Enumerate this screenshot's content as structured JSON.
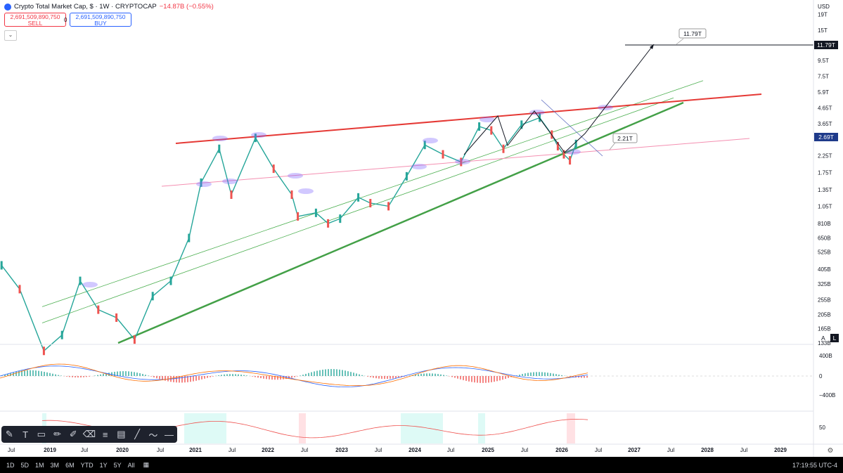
{
  "header": {
    "title": "Crypto Total Market Cap, $ · 1W · CRYPTOCAP",
    "change": "−14.87B (−0.55%)",
    "sell_price": "2,691,509,890,750",
    "sell_label": "SELL",
    "spread": "0",
    "buy_price": "2,691,509,890,750",
    "buy_label": "BUY",
    "collapse_icon": "chevron-down-icon"
  },
  "price_axis": {
    "currency": "USD",
    "ticks": [
      "19T",
      "15T",
      "11.79T",
      "9.5T",
      "7.5T",
      "5.9T",
      "4.65T",
      "3.65T",
      "2.9T",
      "2.69T",
      "2.25T",
      "1.75T",
      "1.35T",
      "1.05T",
      "810B",
      "650B",
      "525B",
      "405B",
      "325B",
      "255B",
      "205B",
      "165B",
      "133B"
    ],
    "current_price_label": "2.69T",
    "target_label": "11.79T",
    "auto_label": "A",
    "log_label": "L"
  },
  "annotations": {
    "target_callout": "11.79T",
    "support_callout": "2.21T"
  },
  "macd_axis": [
    "400B",
    "0",
    "−400B"
  ],
  "rsi_axis": [
    "50"
  ],
  "time_axis": [
    "Jul",
    "2019",
    "Jul",
    "2020",
    "Jul",
    "2021",
    "Jul",
    "2022",
    "Jul",
    "2023",
    "Jul",
    "2024",
    "Jul",
    "2025",
    "Jul",
    "2026",
    "Jul",
    "2027",
    "Jul",
    "2028",
    "Jul",
    "2029"
  ],
  "toolbar": {
    "timeframes": [
      "1D",
      "5D",
      "1M",
      "3M",
      "6M",
      "YTD",
      "1Y",
      "5Y",
      "All"
    ],
    "clock": "17:19:55 UTC-4"
  },
  "chart_data": {
    "type": "line",
    "title": "Crypto Total Market Cap, $ · 1W · CRYPTOCAP",
    "scale": "log",
    "ylim": [
      "110B",
      "19T"
    ],
    "xlim": [
      "2018-06",
      "2029-06"
    ],
    "x": [
      "2018-05",
      "2018-08",
      "2018-12",
      "2019-03",
      "2019-06",
      "2019-09",
      "2019-12",
      "2020-03",
      "2020-06",
      "2020-09",
      "2020-12",
      "2021-02",
      "2021-05",
      "2021-07",
      "2021-11",
      "2022-02",
      "2022-05",
      "2022-06",
      "2022-09",
      "2022-11",
      "2023-01",
      "2023-04",
      "2023-06",
      "2023-09",
      "2023-12",
      "2024-03",
      "2024-06",
      "2024-09",
      "2024-12",
      "2025-02",
      "2025-04",
      "2025-07",
      "2025-10",
      "2025-12",
      "2026-01",
      "2026-02",
      "2026-03",
      "2026-04"
    ],
    "series": [
      {
        "values": [
          430,
          300,
          118,
          150,
          340,
          220,
          195,
          140,
          270,
          340,
          650,
          1500,
          2500,
          1250,
          2950,
          1850,
          1250,
          900,
          950,
          810,
          870,
          1200,
          1100,
          1050,
          1650,
          2650,
          2300,
          2050,
          3500,
          3300,
          2500,
          3600,
          4000,
          3100,
          2600,
          2300,
          2100,
          2690
        ]
      }
    ],
    "trendlines": [
      {
        "label": "resistance",
        "color": "#ff3333"
      },
      {
        "label": "support",
        "color": "#4caf50"
      }
    ],
    "projection": {
      "path_values": [
        2100,
        11790
      ],
      "target": "11.79T",
      "support": "2.21T"
    },
    "indicators": [
      "MACD",
      "RSI"
    ]
  }
}
